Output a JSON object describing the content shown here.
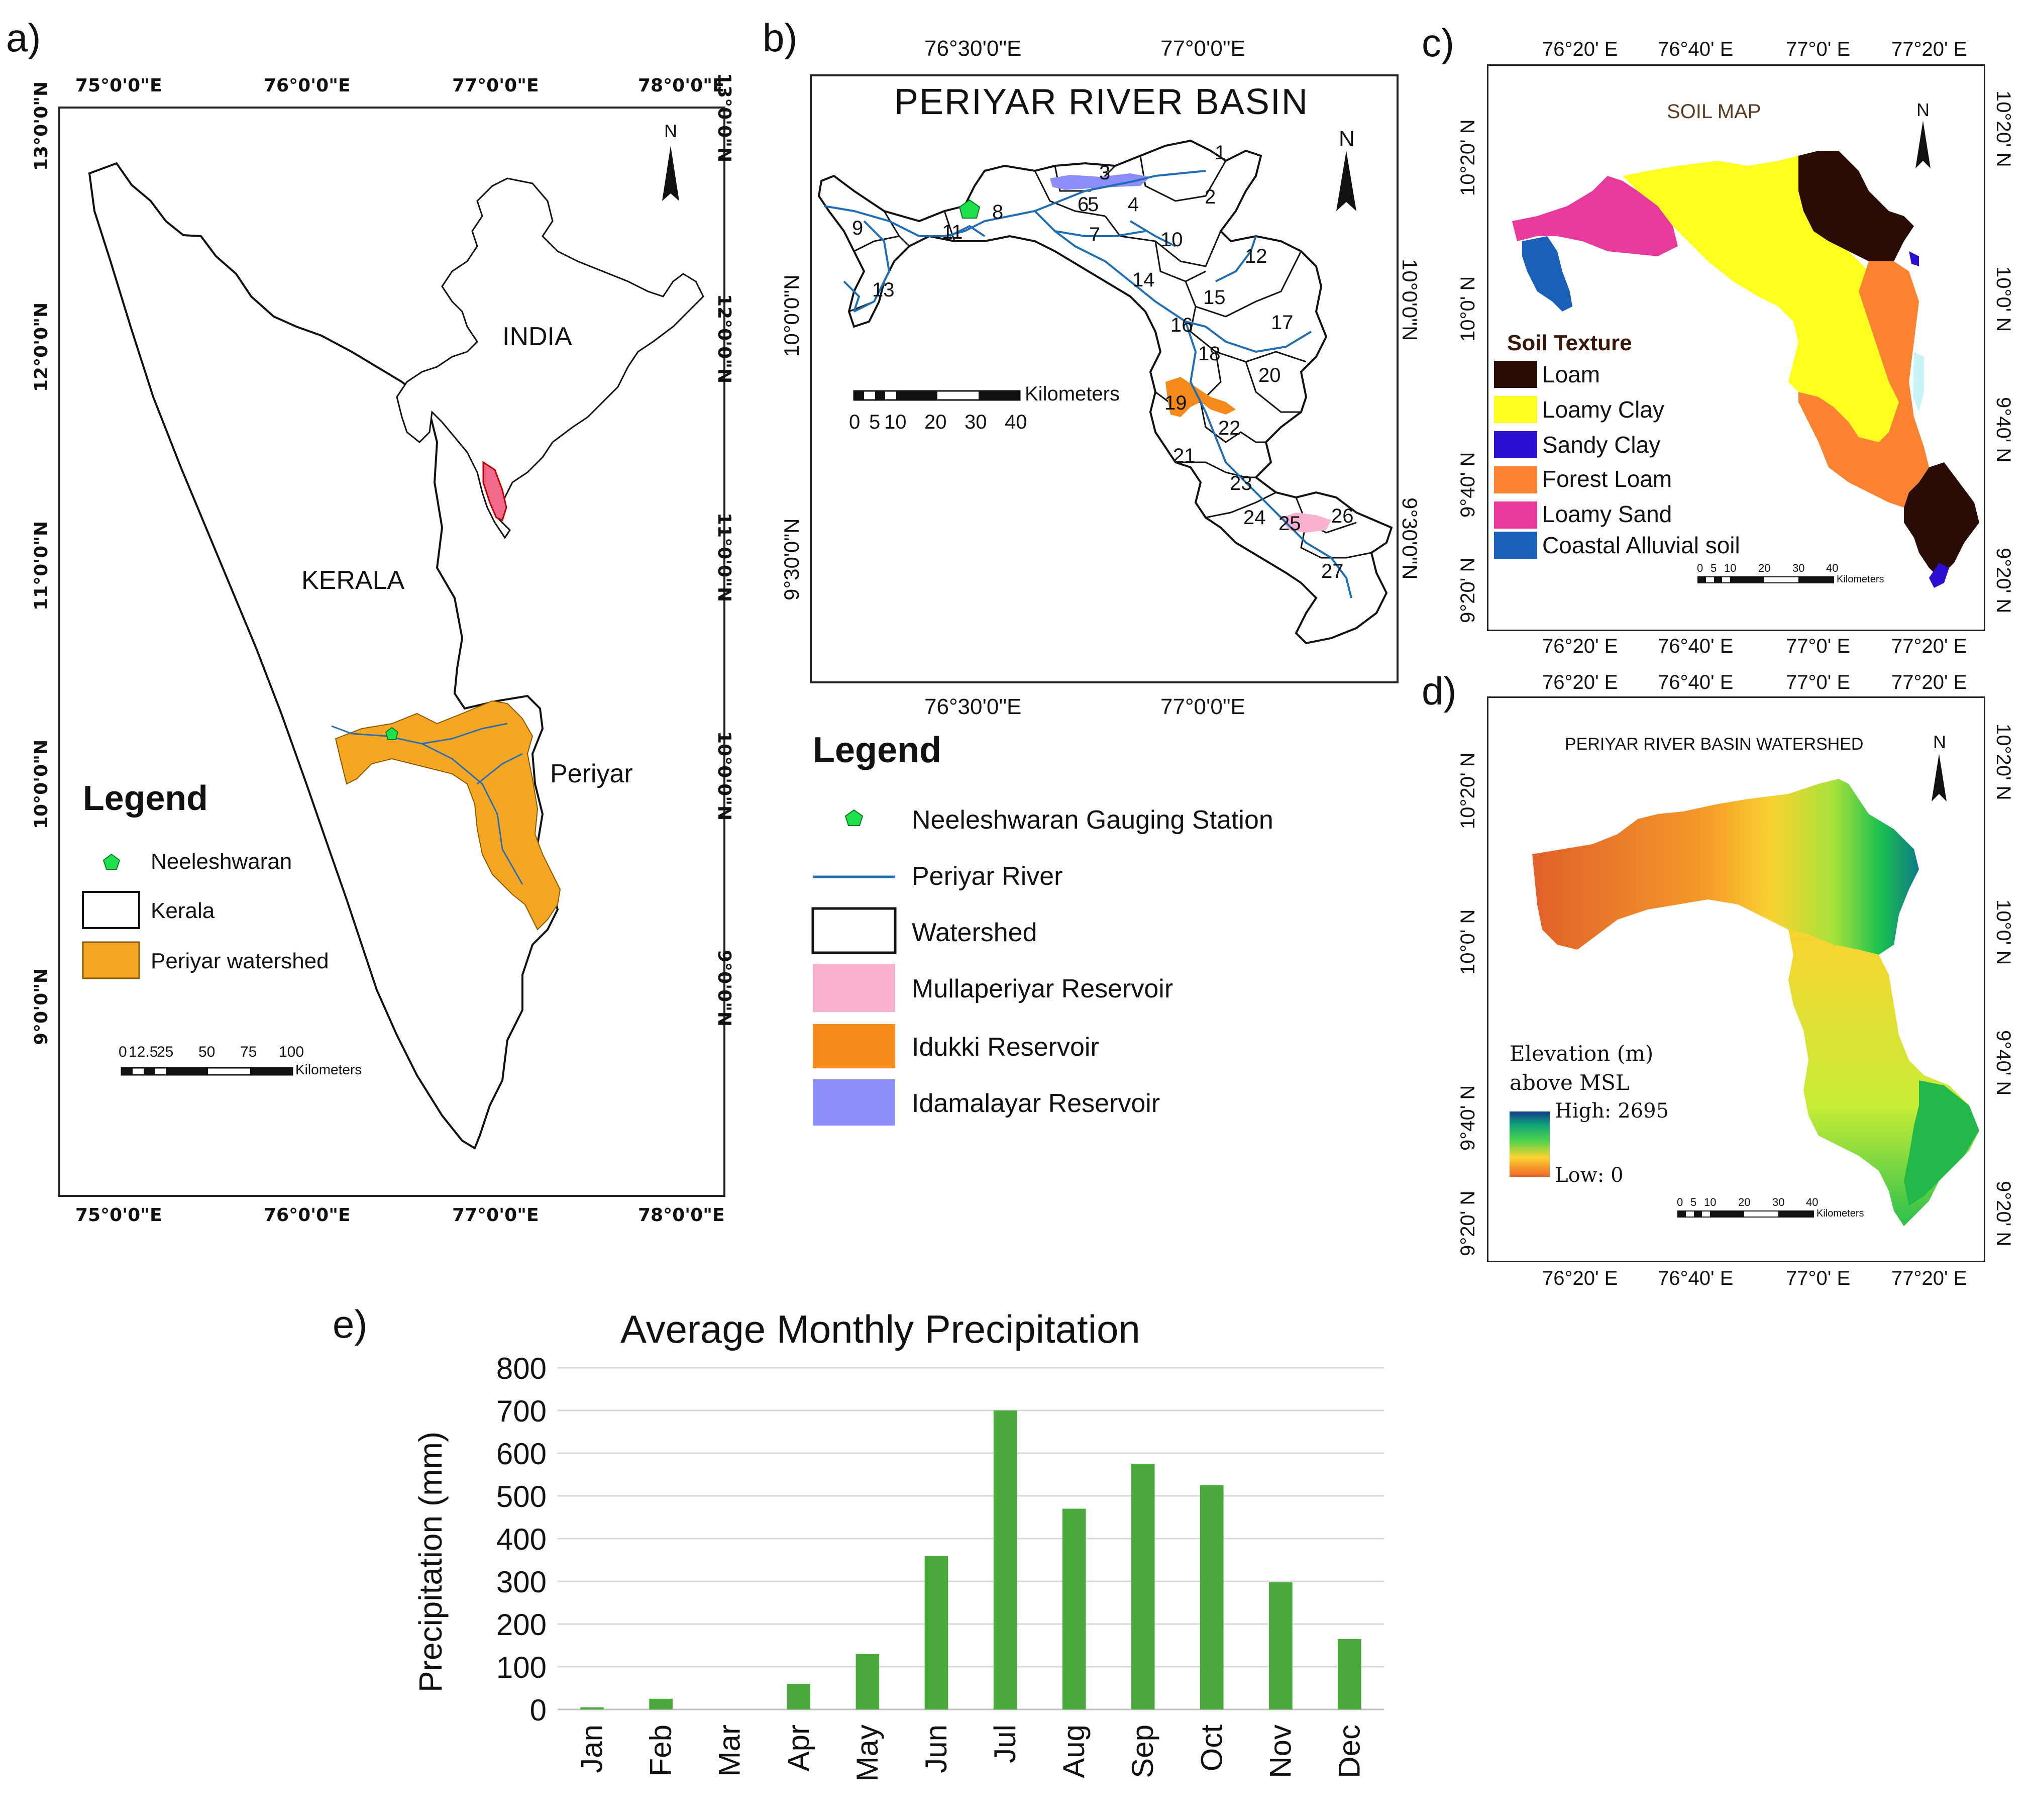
{
  "panels": {
    "a": {
      "label": "a)",
      "top_ticks": [
        "75°0'0\"E",
        "76°0'0\"E",
        "77°0'0\"E",
        "78°0'0\"E"
      ],
      "bottom_ticks": [
        "75°0'0\"E",
        "76°0'0\"E",
        "77°0'0\"E",
        "78°0'0\"E"
      ],
      "left_ticks": [
        "13°0'0\"N",
        "12°0'0\"N",
        "11°0'0\"N",
        "10°0'0\"N",
        "9°0'0\"N"
      ],
      "right_ticks": [
        "13°0'0\"N",
        "12°0'0\"N",
        "11°0'0\"N",
        "10°0'0\"N",
        "9°0'0\"N"
      ],
      "place_india": "INDIA",
      "place_kerala": "KERALA",
      "place_periyar": "Periyar",
      "north": "N",
      "legend_title": "Legend",
      "legend": [
        "Neeleshwaran",
        "Kerala",
        "Periyar watershed"
      ],
      "scale_ticks": [
        "0",
        "12.5",
        "25",
        "50",
        "75",
        "100"
      ],
      "scale_unit": "Kilometers"
    },
    "b": {
      "label": "b)",
      "title": "PERIYAR RIVER BASIN",
      "top_ticks": [
        "76°30'0\"E",
        "77°0'0\"E"
      ],
      "bottom_ticks": [
        "76°30'0\"E",
        "77°0'0\"E"
      ],
      "left_ticks": [
        "10°0'0\"N",
        "9°30'0\"N"
      ],
      "right_ticks": [
        "10°0'0\"N",
        "9°30'0\"N"
      ],
      "north": "N",
      "subbasins": [
        "1",
        "2",
        "3",
        "4",
        "5",
        "6",
        "7",
        "8",
        "9",
        "10",
        "11",
        "12",
        "13",
        "14",
        "15",
        "16",
        "17",
        "18",
        "19",
        "20",
        "21",
        "22",
        "23",
        "24",
        "25",
        "26",
        "27"
      ],
      "scale_ticks": [
        "0",
        "5",
        "10",
        "20",
        "30",
        "40"
      ],
      "scale_unit": "Kilometers",
      "legend_title": "Legend",
      "legend": [
        "Neeleshwaran Gauging Station",
        "Periyar River",
        "Watershed",
        "Mullaperiyar Reservoir",
        "Idukki Reservoir",
        "Idamalayar Reservoir"
      ]
    },
    "c": {
      "label": "c)",
      "title": "SOIL MAP",
      "ticks_x": [
        "76°20' E",
        "76°40' E",
        "77°0' E",
        "77°20' E"
      ],
      "ticks_y": [
        "10°20' N",
        "10°0' N",
        "9°40' N",
        "9°20' N"
      ],
      "north": "N",
      "legend_title": "Soil Texture",
      "legend": [
        {
          "label": "Loam",
          "color": "#2a0c06"
        },
        {
          "label": "Loamy Clay",
          "color": "#ffff1f"
        },
        {
          "label": "Sandy Clay",
          "color": "#2a0fd0"
        },
        {
          "label": "Forest Loam",
          "color": "#fb8230"
        },
        {
          "label": "Loamy Sand",
          "color": "#e83a9c"
        },
        {
          "label": "Coastal Alluvial soil",
          "color": "#1a5fb8"
        }
      ],
      "scale_ticks": [
        "0",
        "5",
        "10",
        "20",
        "30",
        "40"
      ],
      "scale_unit": "Kilometers"
    },
    "d": {
      "label": "d)",
      "title": "PERIYAR RIVER BASIN WATERSHED",
      "ticks_x": [
        "76°20' E",
        "76°40' E",
        "77°0' E",
        "77°20' E"
      ],
      "ticks_y": [
        "10°20' N",
        "10°0' N",
        "9°40' N",
        "9°20' N"
      ],
      "north": "N",
      "legend_title": "Elevation (m) above MSL",
      "legend_high": "High: 2695",
      "legend_low": "Low: 0",
      "scale_ticks": [
        "0",
        "5",
        "10",
        "20",
        "30",
        "40"
      ],
      "scale_unit": "Kilometers"
    },
    "e": {
      "label": "e)"
    }
  },
  "chart_data": {
    "type": "bar",
    "title": "Average Monthly Precipitation",
    "ylabel": "Precipitation (mm)",
    "xlabel": "",
    "categories": [
      "Jan",
      "Feb",
      "Mar",
      "Apr",
      "May",
      "Jun",
      "Jul",
      "Aug",
      "Sep",
      "Oct",
      "Nov",
      "Dec"
    ],
    "values": [
      5,
      25,
      0,
      60,
      130,
      360,
      700,
      470,
      575,
      525,
      298,
      165
    ],
    "ylim": [
      0,
      800
    ],
    "yticks": [
      0,
      100,
      200,
      300,
      400,
      500,
      600,
      700,
      800
    ],
    "grid": true,
    "color": "#4aaa3c"
  }
}
